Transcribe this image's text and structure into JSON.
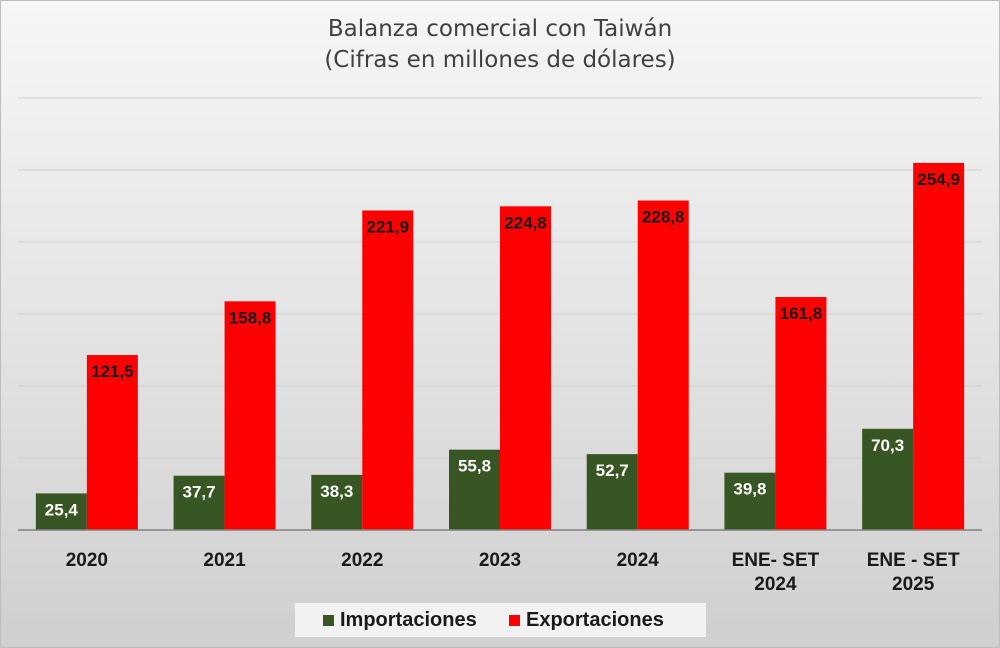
{
  "chart_data": {
    "type": "bar",
    "title": "Balanza comercial con Taiwán",
    "subtitle": "(Cifras en millones de dólares)",
    "categories": [
      "2020",
      "2021",
      "2022",
      "2023",
      "2024",
      "ENE- SET 2024",
      "ENE - SET 2025"
    ],
    "category_lines": [
      [
        "2020"
      ],
      [
        "2021"
      ],
      [
        "2022"
      ],
      [
        "2023"
      ],
      [
        "2024"
      ],
      [
        "ENE- SET",
        "2024"
      ],
      [
        "ENE - SET",
        "2025"
      ]
    ],
    "series": [
      {
        "name": "Importaciones",
        "color": "#375623",
        "values": [
          25.4,
          37.7,
          38.3,
          55.8,
          52.7,
          39.8,
          70.3
        ],
        "labels": [
          "25,4",
          "37,7",
          "38,3",
          "55,8",
          "52,7",
          "39,8",
          "70,3"
        ]
      },
      {
        "name": "Exportaciones",
        "color": "#ff0000",
        "values": [
          121.5,
          158.8,
          221.9,
          224.8,
          228.8,
          161.8,
          254.9
        ],
        "labels": [
          "121,5",
          "158,8",
          "221,9",
          "224,8",
          "228,8",
          "161,8",
          "254,9"
        ]
      }
    ],
    "ylim": [
      0,
      300
    ],
    "grid": true,
    "legend": "bottom",
    "xlabel": "",
    "ylabel": ""
  }
}
